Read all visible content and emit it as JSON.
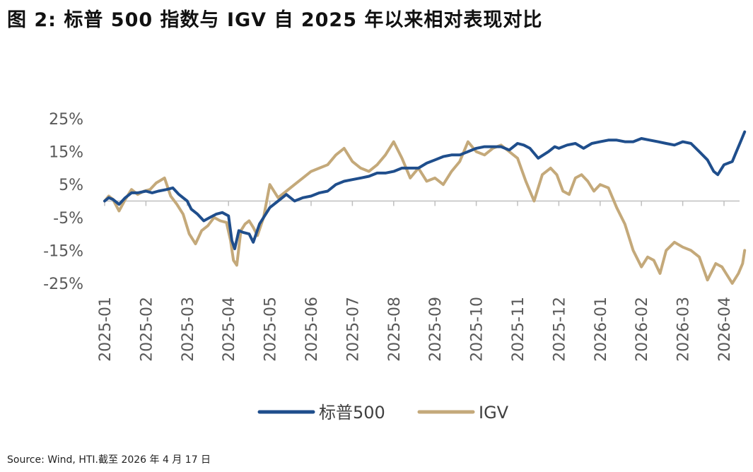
{
  "figure": {
    "title": "图 2:  标普 500 指数与 IGV 自 2025 年以来相对表现对比",
    "source": "Source: Wind, HTI.截至 2026 年 4 月 17 日"
  },
  "colors": {
    "sp500": "#1F4E8C",
    "igv": "#C4A97A",
    "axis": "#BFBFBF"
  },
  "chart_data": {
    "type": "line",
    "title": "标普 500 指数与 IGV 自 2025 年以来相对表现对比",
    "xlabel": "",
    "ylabel": "",
    "ylim": [
      -25,
      25
    ],
    "y_ticks": [
      "25%",
      "15%",
      "5%",
      "-5%",
      "-15%",
      "-25%"
    ],
    "y_tick_values": [
      25,
      15,
      5,
      -5,
      -15,
      -25
    ],
    "x_ticks": [
      "2025-01",
      "2025-02",
      "2025-03",
      "2025-04",
      "2025-05",
      "2025-06",
      "2025-07",
      "2025-08",
      "2025-09",
      "2025-10",
      "2025-11",
      "2025-12",
      "2026-01",
      "2026-02",
      "2026-03",
      "2026-04"
    ],
    "x_units": "months since 2025-01",
    "xlim": [
      0,
      15.55
    ],
    "legend_position": "bottom-center",
    "series": [
      {
        "name": "标普500",
        "x": [
          0,
          0.1,
          0.2,
          0.35,
          0.5,
          0.65,
          0.8,
          1.0,
          1.15,
          1.3,
          1.5,
          1.65,
          1.8,
          2.0,
          2.1,
          2.25,
          2.4,
          2.55,
          2.7,
          2.85,
          3.0,
          3.08,
          3.15,
          3.25,
          3.35,
          3.5,
          3.6,
          3.75,
          3.9,
          4.0,
          4.2,
          4.4,
          4.6,
          4.8,
          5.0,
          5.2,
          5.4,
          5.6,
          5.8,
          6.0,
          6.2,
          6.4,
          6.6,
          6.8,
          7.0,
          7.2,
          7.4,
          7.6,
          7.8,
          8.0,
          8.2,
          8.4,
          8.6,
          8.8,
          9.0,
          9.2,
          9.4,
          9.6,
          9.8,
          10.0,
          10.15,
          10.3,
          10.5,
          10.75,
          10.9,
          11.0,
          11.2,
          11.4,
          11.6,
          11.8,
          12.0,
          12.2,
          12.4,
          12.6,
          12.8,
          13.0,
          13.2,
          13.4,
          13.6,
          13.8,
          14.0,
          14.2,
          14.4,
          14.6,
          14.75,
          14.85,
          15.0,
          15.2,
          15.3,
          15.4,
          15.5
        ],
        "values": [
          0,
          1,
          0.5,
          -1,
          1,
          2.5,
          2.5,
          3,
          2.5,
          3,
          3.5,
          4,
          2,
          0,
          -2.5,
          -4,
          -6,
          -5,
          -4,
          -3.5,
          -4.5,
          -12,
          -14.5,
          -9,
          -9.5,
          -10,
          -12.5,
          -7,
          -4,
          -2,
          0,
          2,
          0,
          1,
          1.5,
          2.5,
          3,
          5,
          6,
          6.5,
          7,
          7.5,
          8.5,
          8.5,
          9,
          10,
          10,
          10,
          11.5,
          12.5,
          13.5,
          14,
          14,
          15,
          16,
          16.5,
          16.5,
          16.5,
          15.5,
          17.5,
          17,
          16,
          13,
          15,
          16.5,
          16,
          17,
          17.5,
          16,
          17.5,
          18,
          18.5,
          18.5,
          18,
          18,
          19,
          18.5,
          18,
          17.5,
          17,
          18,
          17.5,
          15,
          12.5,
          9,
          8,
          11,
          12,
          15,
          18,
          21
        ]
      },
      {
        "name": "IGV",
        "x": [
          0,
          0.1,
          0.2,
          0.35,
          0.5,
          0.65,
          0.8,
          0.95,
          1.1,
          1.25,
          1.45,
          1.6,
          1.75,
          1.9,
          2.05,
          2.2,
          2.35,
          2.5,
          2.65,
          2.8,
          2.95,
          3.05,
          3.12,
          3.2,
          3.3,
          3.4,
          3.5,
          3.6,
          3.7,
          3.85,
          4.0,
          4.2,
          4.4,
          4.6,
          4.8,
          5.0,
          5.2,
          5.4,
          5.6,
          5.8,
          6.0,
          6.2,
          6.4,
          6.6,
          6.8,
          7.0,
          7.2,
          7.4,
          7.6,
          7.8,
          8.0,
          8.2,
          8.4,
          8.6,
          8.8,
          9.0,
          9.2,
          9.4,
          9.6,
          9.8,
          10.0,
          10.2,
          10.4,
          10.6,
          10.8,
          10.95,
          11.1,
          11.25,
          11.4,
          11.55,
          11.7,
          11.85,
          12.0,
          12.2,
          12.4,
          12.6,
          12.8,
          13.0,
          13.15,
          13.3,
          13.45,
          13.6,
          13.8,
          14.0,
          14.2,
          14.4,
          14.6,
          14.8,
          14.95,
          15.05,
          15.2,
          15.35,
          15.45,
          15.5
        ],
        "values": [
          0,
          1.5,
          0.5,
          -3,
          0.5,
          3.5,
          2,
          3,
          3.5,
          5.5,
          7,
          1.5,
          -1,
          -4,
          -10,
          -13,
          -9,
          -7.5,
          -5,
          -6,
          -6.5,
          -12,
          -18,
          -19.5,
          -9,
          -7,
          -6,
          -8,
          -10.5,
          -5,
          5,
          1,
          3,
          5,
          7,
          9,
          10,
          11,
          14,
          16,
          12,
          10,
          9,
          11,
          14,
          18,
          13,
          7,
          10,
          6,
          7,
          5,
          9,
          12,
          18,
          15,
          14,
          16,
          17,
          15,
          13,
          6,
          0,
          8,
          10,
          8,
          3,
          2,
          7,
          8,
          6,
          3,
          5,
          4,
          -2,
          -7,
          -15,
          -20,
          -17,
          -18,
          -22,
          -15,
          -12.5,
          -14,
          -15,
          -17,
          -24,
          -19,
          -20,
          -22,
          -25,
          -22,
          -19,
          -15
        ]
      }
    ]
  }
}
